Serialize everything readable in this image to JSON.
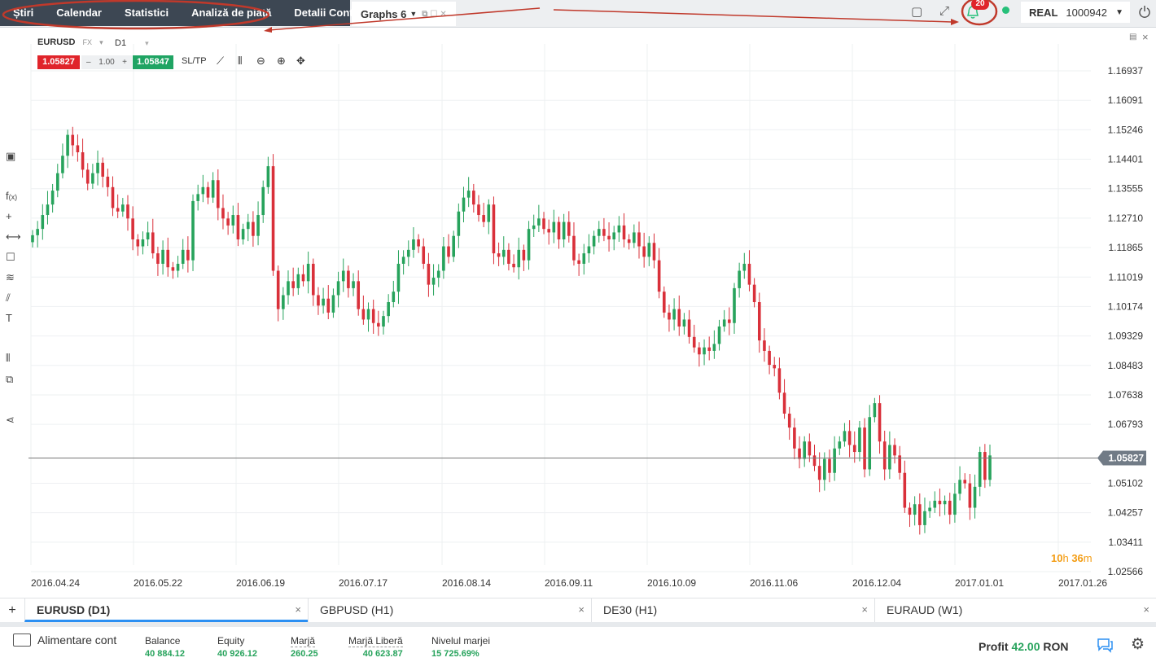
{
  "nav": {
    "items": [
      "Știri",
      "Calendar",
      "Statistici",
      "Analiză de piață",
      "Detalii Cont"
    ],
    "graphs_tab": "Graphs 6"
  },
  "topright": {
    "notifications_count": "20",
    "account_type": "REAL",
    "account_id": "1000942"
  },
  "symbol": {
    "name": "EURUSD",
    "market": "FX",
    "timeframe": "D1",
    "sell_price": "1.05827",
    "lot": "1.00",
    "buy_price": "1.05847",
    "sltp": "SL/TP",
    "current_price_label": "1.05827"
  },
  "timer": {
    "h": "10",
    "h_unit": "h",
    "m": "36",
    "m_unit": "m"
  },
  "colors": {
    "up": "#27a35c",
    "down": "#d9303a",
    "sell": "#e0242a",
    "buy": "#1fa463",
    "nav_bg": "#3d4753",
    "accent": "#2b8ff2"
  },
  "chart_data": {
    "type": "candlestick",
    "symbol": "EURUSD",
    "timeframe": "D1",
    "y_ticks": [
      "1.16937",
      "1.16091",
      "1.15246",
      "1.14401",
      "1.13555",
      "1.12710",
      "1.11865",
      "1.11019",
      "1.10174",
      "1.09329",
      "1.08483",
      "1.07638",
      "1.06793",
      "1.05102",
      "1.04257",
      "1.03411",
      "1.02566"
    ],
    "x_ticks": [
      "2016.04.24",
      "2016.05.22",
      "2016.06.19",
      "2016.07.17",
      "2016.08.14",
      "2016.09.11",
      "2016.10.09",
      "2016.11.06",
      "2016.12.04",
      "2017.01.01",
      "2017.01.26"
    ],
    "ylim": [
      1.02566,
      1.16937
    ],
    "current_price": 1.05827,
    "grid": true,
    "closes": [
      1.1222,
      1.124,
      1.128,
      1.131,
      1.135,
      1.14,
      1.145,
      1.151,
      1.148,
      1.146,
      1.141,
      1.137,
      1.14,
      1.143,
      1.139,
      1.136,
      1.13,
      1.129,
      1.131,
      1.127,
      1.121,
      1.119,
      1.121,
      1.123,
      1.117,
      1.114,
      1.118,
      1.113,
      1.112,
      1.114,
      1.118,
      1.115,
      1.132,
      1.134,
      1.136,
      1.133,
      1.138,
      1.13,
      1.127,
      1.125,
      1.128,
      1.121,
      1.124,
      1.126,
      1.122,
      1.128,
      1.136,
      1.142,
      1.112,
      1.101,
      1.105,
      1.109,
      1.107,
      1.111,
      1.109,
      1.114,
      1.105,
      1.102,
      1.104,
      1.1,
      1.105,
      1.109,
      1.112,
      1.107,
      1.109,
      1.101,
      1.098,
      1.101,
      1.097,
      1.096,
      1.099,
      1.103,
      1.106,
      1.114,
      1.116,
      1.118,
      1.121,
      1.119,
      1.114,
      1.108,
      1.11,
      1.112,
      1.119,
      1.116,
      1.122,
      1.129,
      1.133,
      1.135,
      1.131,
      1.128,
      1.126,
      1.131,
      1.117,
      1.116,
      1.118,
      1.114,
      1.113,
      1.118,
      1.115,
      1.124,
      1.125,
      1.127,
      1.124,
      1.123,
      1.126,
      1.121,
      1.126,
      1.122,
      1.115,
      1.114,
      1.117,
      1.119,
      1.122,
      1.124,
      1.122,
      1.121,
      1.123,
      1.125,
      1.121,
      1.12,
      1.123,
      1.119,
      1.116,
      1.12,
      1.115,
      1.106,
      1.1,
      1.098,
      1.101,
      1.096,
      1.098,
      1.093,
      1.09,
      1.088,
      1.09,
      1.089,
      1.091,
      1.096,
      1.098,
      1.097,
      1.107,
      1.112,
      1.114,
      1.108,
      1.103,
      1.092,
      1.089,
      1.085,
      1.084,
      1.077,
      1.071,
      1.067,
      1.061,
      1.058,
      1.063,
      1.059,
      1.056,
      1.052,
      1.058,
      1.054,
      1.061,
      1.063,
      1.066,
      1.062,
      1.06,
      1.067,
      1.055,
      1.07,
      1.074,
      1.063,
      1.055,
      1.062,
      1.059,
      1.054,
      1.044,
      1.042,
      1.045,
      1.039,
      1.043,
      1.044,
      1.046,
      1.045,
      1.046,
      1.042,
      1.048,
      1.052,
      1.051,
      1.044,
      1.05,
      1.06,
      1.052,
      1.059
    ]
  },
  "tabs": [
    {
      "label": "EURUSD (D1)",
      "close": "×"
    },
    {
      "label": "GBPUSD (H1)",
      "close": "×"
    },
    {
      "label": "DE30 (H1)",
      "close": "×"
    },
    {
      "label": "EURAUD (W1)",
      "close": "×"
    }
  ],
  "bottom": {
    "deposit": "Alimentare cont",
    "stats": [
      {
        "label": "Balance",
        "value": "40 884.12"
      },
      {
        "label": "Equity",
        "value": "40 926.12"
      },
      {
        "label": "Marjă",
        "value": "260.25"
      },
      {
        "label": "Marjă Liberă",
        "value": "40 623.87"
      },
      {
        "label": "Nivelul marjei",
        "value": "15 725.69%"
      }
    ],
    "profit_label": "Profit",
    "profit_value": "42.00",
    "profit_currency": "RON"
  }
}
